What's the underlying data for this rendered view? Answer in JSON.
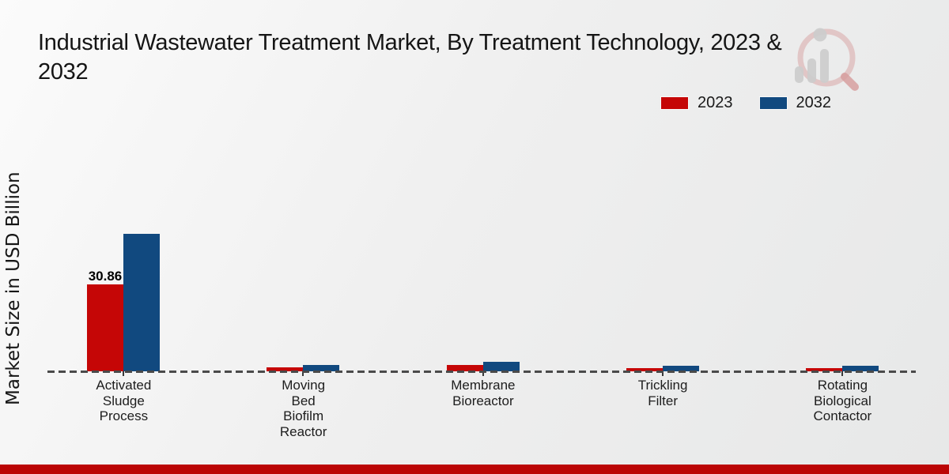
{
  "title": {
    "line1": "Industrial Wastewater Treatment Market, By Treatment Technology, 2023 &",
    "line2": "2032"
  },
  "y_axis_label": "Market Size in USD Billion",
  "legend": {
    "items": [
      {
        "label": "2023",
        "color": "#c50606"
      },
      {
        "label": "2032",
        "color": "#11497f"
      }
    ]
  },
  "watermark": {
    "name": "market-research-future-logo"
  },
  "footer": {
    "bar_color": "#bb0505"
  },
  "chart_data": {
    "type": "bar",
    "title": "Industrial Wastewater Treatment Market, By Treatment Technology, 2023 & 2032",
    "categories": [
      "Activated Sludge Process",
      "Moving Bed Biofilm Reactor",
      "Membrane Bioreactor",
      "Trickling Filter",
      "Rotating Biological Contactor"
    ],
    "series": [
      {
        "name": "2023",
        "color": "#c50606",
        "values": [
          30.86,
          1.4,
          2.2,
          1.1,
          1.2
        ]
      },
      {
        "name": "2032",
        "color": "#11497f",
        "values": [
          48.8,
          2.2,
          3.4,
          1.9,
          2.0
        ]
      }
    ],
    "data_labels": [
      {
        "series": "2023",
        "category": "Activated Sludge Process",
        "text": "30.86"
      }
    ],
    "xlabel": "",
    "ylabel": "Market Size in USD Billion",
    "ylim": [
      0,
      55
    ],
    "grid": false,
    "y_axis_ticks_visible": false,
    "baseline_style": "dashed",
    "legend_position": "top-right"
  }
}
